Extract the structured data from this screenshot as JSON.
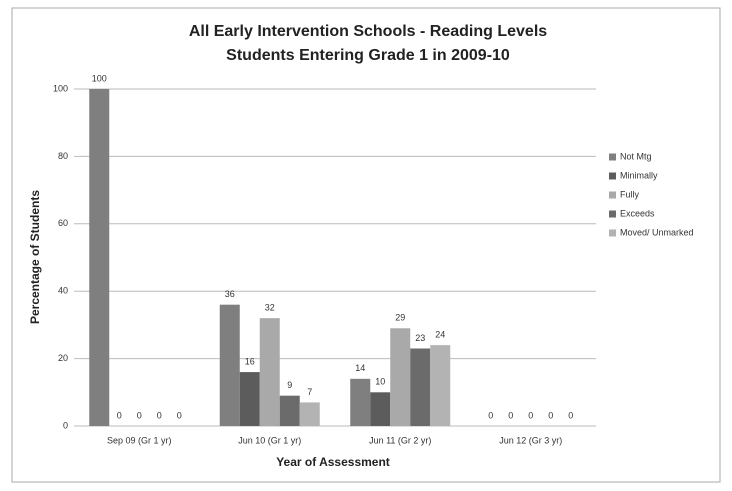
{
  "chart_data": {
    "type": "bar",
    "title": "All Early Intervention Schools - Reading Levels",
    "subtitle": "Students Entering Grade 1 in 2009-10",
    "x_label": "Year of Assessment",
    "y_label": "Percentage of Students",
    "categories": [
      "Sep 09 (Gr 1 yr)",
      "Jun 10 (Gr 1 yr)",
      "Jun 11 (Gr 2 yr)",
      "Jun 12 (Gr 3 yr)"
    ],
    "series": [
      {
        "name": "Not Mtg",
        "color": "#7f7f7f",
        "values": [
          100,
          36,
          14,
          0
        ]
      },
      {
        "name": "Minimally",
        "color": "#5c5c5c",
        "values": [
          0,
          16,
          10,
          0
        ]
      },
      {
        "name": "Fully",
        "color": "#a9a9a9",
        "values": [
          0,
          32,
          29,
          0
        ]
      },
      {
        "name": "Exceeds",
        "color": "#6b6b6b",
        "values": [
          0,
          9,
          23,
          0
        ]
      },
      {
        "name": "Moved/ Unmarked",
        "color": "#b3b3b3",
        "values": [
          0,
          7,
          24,
          0
        ]
      }
    ],
    "ylim": [
      0,
      100
    ],
    "yticks": [
      0,
      20,
      40,
      60,
      80,
      100
    ],
    "grid": true,
    "legend": "right"
  }
}
